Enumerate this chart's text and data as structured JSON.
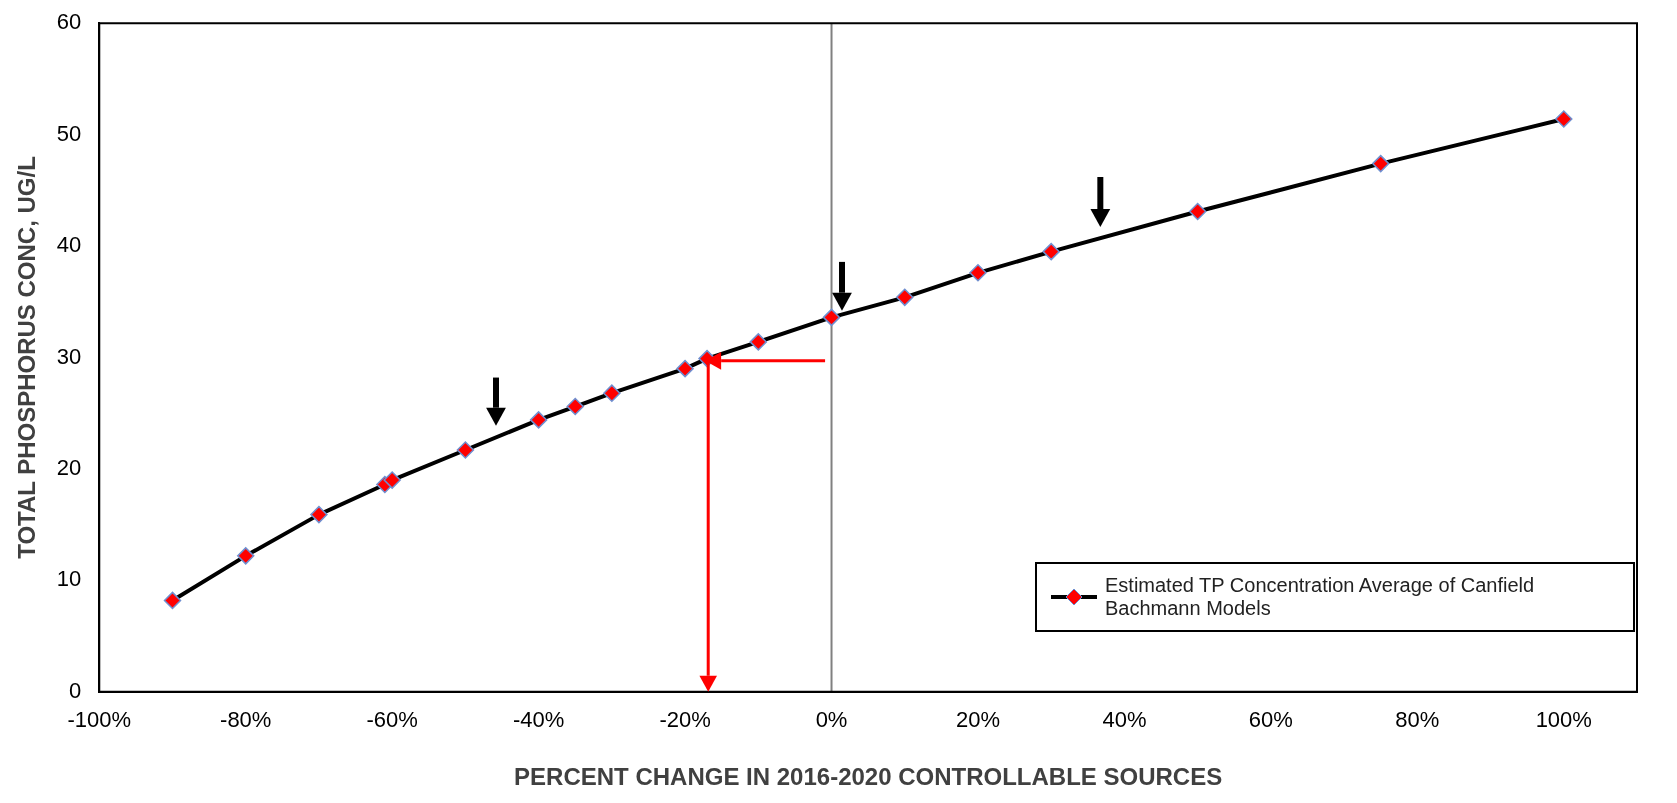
{
  "chart_data": {
    "type": "line",
    "xlabel": "PERCENT CHANGE IN 2016-2020 CONTROLLABLE SOURCES",
    "ylabel": "TOTAL PHOSPHORUS CONC, UG/L",
    "xlim": [
      -100,
      110
    ],
    "xticks": [
      {
        "value": -100,
        "label": "-100%"
      },
      {
        "value": -80,
        "label": "-80%"
      },
      {
        "value": -60,
        "label": "-60%"
      },
      {
        "value": -40,
        "label": "-40%"
      },
      {
        "value": -20,
        "label": "-20%"
      },
      {
        "value": 0,
        "label": "0%"
      },
      {
        "value": 20,
        "label": "20%"
      },
      {
        "value": 40,
        "label": "40%"
      },
      {
        "value": 60,
        "label": "60%"
      },
      {
        "value": 80,
        "label": "80%"
      },
      {
        "value": 100,
        "label": "100%"
      }
    ],
    "ylim": [
      0,
      60
    ],
    "yticks": [
      0,
      10,
      20,
      30,
      40,
      50,
      60
    ],
    "grid": false,
    "legend": "bottom right",
    "marker": "diamond",
    "line_style": "solid",
    "ref_lines": [
      {
        "axis": "x",
        "value": 0,
        "color": "#808080"
      }
    ],
    "series": [
      {
        "name": "Estimated TP Concentration Average of Canfield Bachmann Models",
        "color": "#000000",
        "colors": [
          "#ff0000",
          "#ff0000",
          "#ff0000",
          "#ff0000",
          "#ff0000",
          "#ff0000",
          "#ff0000",
          "#ff0000",
          "#ff0000",
          "#ff0000",
          "#ff0000",
          "#ff0000",
          "#ff0000",
          "#ff0000",
          "#ff0000",
          "#ff0000",
          "#ff0000",
          "#ff0000",
          "#ff0000"
        ],
        "x": [
          -90,
          -80,
          -70,
          -61,
          -60,
          -50,
          -40,
          -35,
          -30,
          -20,
          -17,
          -10,
          0,
          10,
          20,
          30,
          50,
          75,
          100
        ],
        "values": [
          8.2,
          12.2,
          15.9,
          18.6,
          19.0,
          21.7,
          24.4,
          25.6,
          26.8,
          29.0,
          29.9,
          31.4,
          33.6,
          35.4,
          37.6,
          39.5,
          43.1,
          47.4,
          51.4
        ]
      }
    ]
  }
}
